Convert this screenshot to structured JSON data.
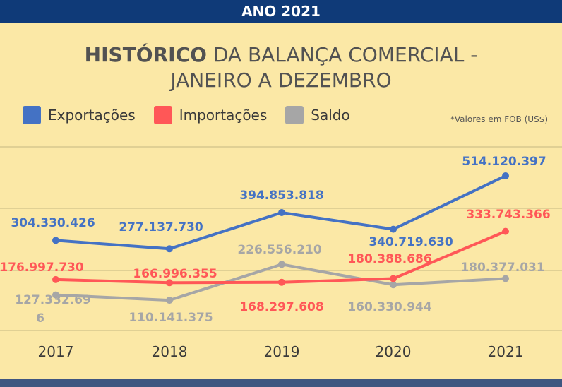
{
  "header": {
    "banner": "ANO 2021"
  },
  "title": {
    "bold": "HISTÓRICO",
    "rest_line1": " DA BALANÇA COMERCIAL -",
    "line2": "JANEIRO A DEZEMBRO"
  },
  "note": "*Valores em FOB (US$)",
  "colors": {
    "exportacoes": "#4472c4",
    "importacoes": "#ff5757",
    "saldo": "#a6a6a6",
    "banner": "#0f3a78",
    "background": "#fbe8a6"
  },
  "chart_data": {
    "type": "line",
    "categories": [
      "2017",
      "2018",
      "2019",
      "2020",
      "2021"
    ],
    "series": [
      {
        "name": "Exportações",
        "values": [
          304330426,
          277137730,
          394853818,
          340719630,
          514120397
        ],
        "labels": [
          "304.330.426",
          "277.137.730",
          "394.853.818",
          "340.719.630",
          "514.120.397"
        ]
      },
      {
        "name": "Importações",
        "values": [
          176997730,
          166996355,
          168297608,
          180388686,
          333743366
        ],
        "labels": [
          "176.997.730",
          "166.996.355",
          "168.297.608",
          "180.388.686",
          "333.743.366"
        ]
      },
      {
        "name": "Saldo",
        "values": [
          127332696,
          110141375,
          226556210,
          160330944,
          180377031
        ],
        "labels": [
          "127.332.69\n6",
          "110.141.375",
          "226.556.210",
          "160.330.944",
          "180.377.031"
        ]
      }
    ],
    "legend": "top-left",
    "grid": "horizontal"
  }
}
